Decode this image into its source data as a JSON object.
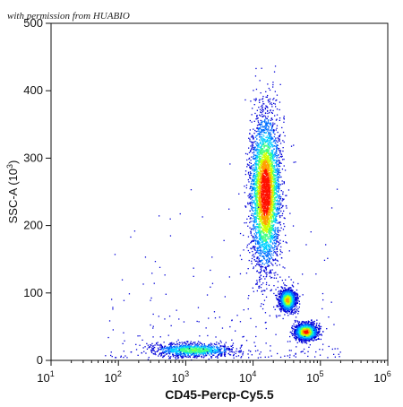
{
  "watermark": "with permission from HUABIO",
  "chart_data": {
    "type": "scatter",
    "subtype": "flow-cytometry-density-dot-plot",
    "xlabel": "CD45-Percp-Cy5.5",
    "ylabel": "SSC-A",
    "ylabel_unit": "3",
    "x_scale": "log",
    "y_scale": "linear",
    "xlim": [
      10,
      1000000
    ],
    "ylim": [
      0,
      500
    ],
    "x_ticks": [
      {
        "value": 10,
        "base": "10",
        "exp": "1"
      },
      {
        "value": 100,
        "base": "10",
        "exp": "2"
      },
      {
        "value": 1000,
        "base": "10",
        "exp": "3"
      },
      {
        "value": 10000,
        "base": "10",
        "exp": "4"
      },
      {
        "value": 100000,
        "base": "10",
        "exp": "5"
      },
      {
        "value": 1000000,
        "base": "10",
        "exp": "6"
      }
    ],
    "y_ticks": [
      "0",
      "100",
      "200",
      "300",
      "400",
      "500"
    ],
    "color_scale": [
      "#0000d8",
      "#0070ff",
      "#00d0ff",
      "#40ff80",
      "#d0ff00",
      "#ffa000",
      "#ff1000"
    ],
    "populations": [
      {
        "center_x": 15000,
        "center_y": 250,
        "spread_x_log": 0.11,
        "spread_y": 55,
        "peak_density": 1.0
      },
      {
        "center_x": 32000,
        "center_y": 90,
        "spread_x_log": 0.06,
        "spread_y": 8,
        "peak_density": 0.75
      },
      {
        "center_x": 60000,
        "center_y": 43,
        "spread_x_log": 0.08,
        "spread_y": 6,
        "peak_density": 0.9
      },
      {
        "center_x": 1300,
        "center_y": 16,
        "spread_x_log": 0.3,
        "spread_y": 5,
        "peak_density": 0.55
      }
    ],
    "grid": false,
    "legend": "none"
  }
}
